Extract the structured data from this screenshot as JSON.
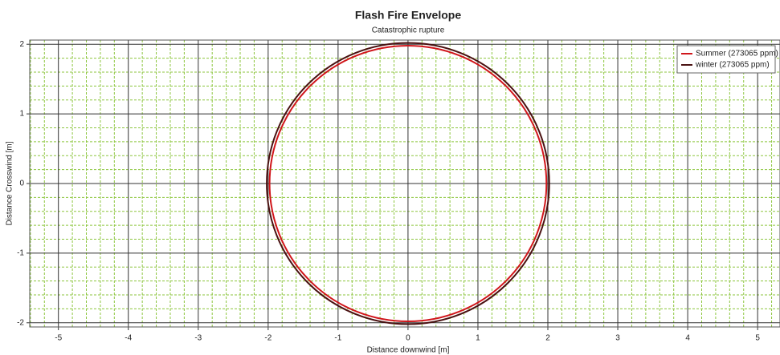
{
  "chart_data": {
    "type": "circles",
    "title": "Flash Fire Envelope",
    "subtitle": "Catastrophic rupture",
    "xlabel": "Distance downwind [m]",
    "ylabel": "Distance Crosswind [m]",
    "xlim": [
      -5.41,
      5.32
    ],
    "ylim": [
      -2.06,
      2.06
    ],
    "xticks": [
      -5,
      -4,
      -3,
      -2,
      -1,
      0,
      1,
      2,
      3,
      4,
      5
    ],
    "yticks": [
      -2,
      -1,
      0,
      1,
      2
    ],
    "grid": true,
    "grid_color": "#333333",
    "minor_grid": 0.2,
    "minor_grid_color": "#8dc63f",
    "legend": "upper right",
    "series": [
      {
        "name": "Summer (273065 ppm)",
        "color": "#d0161b",
        "center": [
          0,
          0
        ],
        "radius": 1.98
      },
      {
        "name": "winter (273065 ppm)",
        "color": "#4a1212",
        "center": [
          0,
          0
        ],
        "radius": 2.02
      }
    ]
  }
}
